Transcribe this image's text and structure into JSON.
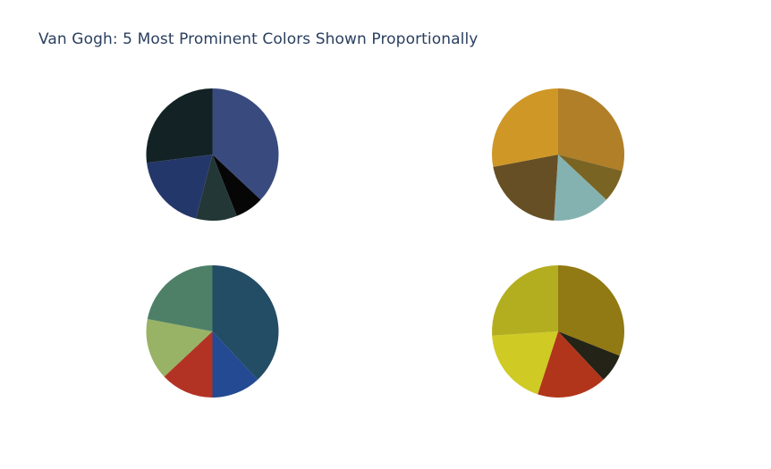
{
  "title": "Van Gogh: 5 Most Prominent Colors Shown Proportionally",
  "chart_data": [
    {
      "type": "pie",
      "title": "",
      "position": "top-left",
      "values": [
        37,
        7,
        10,
        19,
        27
      ],
      "colors": [
        "#394B7E",
        "#060606",
        "#233737",
        "#24376A",
        "#132325"
      ]
    },
    {
      "type": "pie",
      "title": "",
      "position": "top-right",
      "values": [
        29,
        8,
        14,
        21,
        28
      ],
      "colors": [
        "#B07F28",
        "#7A6424",
        "#84B2B0",
        "#664F24",
        "#CF9726"
      ]
    },
    {
      "type": "pie",
      "title": "",
      "position": "bottom-left",
      "values": [
        38,
        12,
        13,
        15,
        22
      ],
      "colors": [
        "#234C65",
        "#234A93",
        "#B23324",
        "#98B366",
        "#4E8067"
      ]
    },
    {
      "type": "pie",
      "title": "",
      "position": "bottom-right",
      "values": [
        31,
        7,
        17,
        19,
        26
      ],
      "colors": [
        "#917914",
        "#232317",
        "#B1351A",
        "#CFCA24",
        "#B3AE20"
      ]
    }
  ]
}
